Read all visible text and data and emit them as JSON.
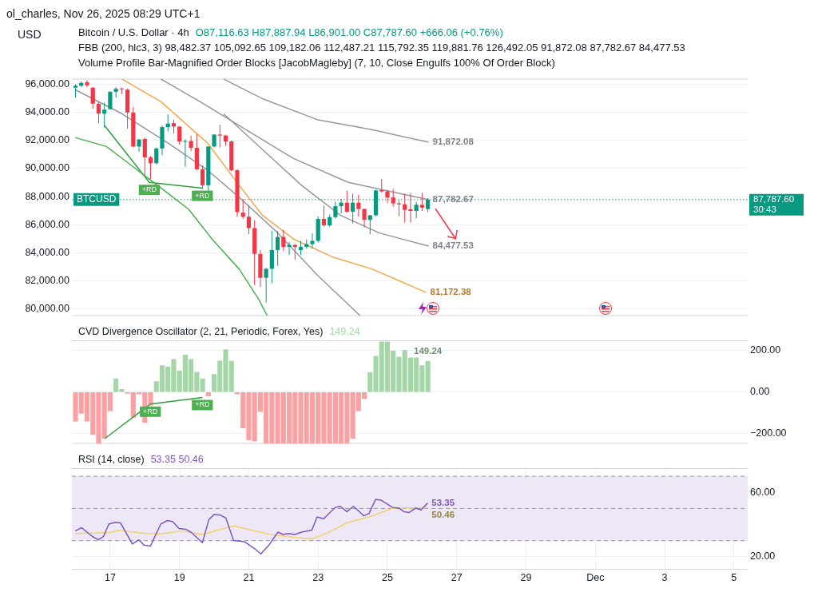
{
  "chart_data": [
    {
      "type": "candlestick",
      "title": "Bitcoin / U.S. Dollar · 4h",
      "subtitle": "O87,116.63 H87,887.94 L86,901.00 C87,787.60 +666.06 (+0.76%)",
      "ylabel": "USD",
      "x": [
        "2025-11-16T00:00",
        "2025-11-16T04:00",
        "2025-11-16T08:00",
        "2025-11-16T12:00",
        "2025-11-16T16:00",
        "2025-11-16T20:00",
        "2025-11-17T00:00",
        "2025-11-17T04:00",
        "2025-11-17T08:00",
        "2025-11-17T12:00",
        "2025-11-17T16:00",
        "2025-11-17T20:00",
        "2025-11-18T00:00",
        "2025-11-18T04:00",
        "2025-11-18T08:00",
        "2025-11-18T12:00",
        "2025-11-18T16:00",
        "2025-11-18T20:00",
        "2025-11-19T00:00",
        "2025-11-19T04:00",
        "2025-11-19T08:00",
        "2025-11-19T12:00",
        "2025-11-19T16:00",
        "2025-11-19T20:00",
        "2025-11-20T00:00",
        "2025-11-20T04:00",
        "2025-11-20T08:00",
        "2025-11-20T12:00",
        "2025-11-20T16:00",
        "2025-11-20T20:00",
        "2025-11-21T00:00",
        "2025-11-21T04:00",
        "2025-11-21T08:00",
        "2025-11-21T12:00",
        "2025-11-21T16:00",
        "2025-11-21T20:00",
        "2025-11-22T00:00",
        "2025-11-22T04:00",
        "2025-11-22T08:00",
        "2025-11-22T12:00",
        "2025-11-22T16:00",
        "2025-11-22T20:00",
        "2025-11-23T00:00",
        "2025-11-23T04:00",
        "2025-11-23T08:00",
        "2025-11-23T12:00",
        "2025-11-23T16:00",
        "2025-11-23T20:00",
        "2025-11-24T00:00",
        "2025-11-24T04:00",
        "2025-11-24T08:00",
        "2025-11-24T12:00",
        "2025-11-24T16:00",
        "2025-11-24T20:00",
        "2025-11-25T00:00",
        "2025-11-25T04:00",
        "2025-11-25T08:00",
        "2025-11-25T12:00",
        "2025-11-25T16:00",
        "2025-11-25T20:00",
        "2025-11-26T00:00",
        "2025-11-26T04:00"
      ],
      "ohlc": [
        [
          95760,
          96000,
          95050,
          95900
        ],
        [
          95900,
          96200,
          95800,
          96100
        ],
        [
          96150,
          96300,
          95800,
          95930
        ],
        [
          95760,
          95800,
          94270,
          94620
        ],
        [
          94620,
          94770,
          93200,
          93910
        ],
        [
          93910,
          94700,
          92920,
          94200
        ],
        [
          94230,
          95500,
          94200,
          95470
        ],
        [
          95470,
          95800,
          95050,
          95680
        ],
        [
          95700,
          95780,
          95300,
          95650
        ],
        [
          95620,
          95700,
          92840,
          93990
        ],
        [
          93990,
          94400,
          91500,
          91570
        ],
        [
          91570,
          92100,
          91200,
          92070
        ],
        [
          92100,
          92200,
          89530,
          90800
        ],
        [
          90800,
          90900,
          89250,
          90380
        ],
        [
          90380,
          91500,
          90300,
          91430
        ],
        [
          91430,
          93060,
          90950,
          92950
        ],
        [
          92950,
          93850,
          92650,
          93200
        ],
        [
          93230,
          93490,
          92500,
          92990
        ],
        [
          92990,
          93000,
          91710,
          91930
        ],
        [
          91900,
          92070,
          90120,
          91960
        ],
        [
          91960,
          92350,
          91230,
          91480
        ],
        [
          91480,
          92450,
          89880,
          89950
        ],
        [
          89950,
          90230,
          88530,
          88810
        ],
        [
          88810,
          91570,
          88380,
          91570
        ],
        [
          91570,
          92450,
          91500,
          92420
        ],
        [
          92420,
          93130,
          91500,
          92350
        ],
        [
          92350,
          92400,
          91640,
          91930
        ],
        [
          91930,
          92000,
          89800,
          89880
        ],
        [
          89880,
          89950,
          86550,
          86900
        ],
        [
          86860,
          87830,
          86420,
          86570
        ],
        [
          86570,
          87400,
          85330,
          85760
        ],
        [
          85760,
          86330,
          81700,
          83920
        ],
        [
          83920,
          84200,
          81560,
          82220
        ],
        [
          82220,
          82930,
          80450,
          82860
        ],
        [
          82860,
          85560,
          81840,
          84200
        ],
        [
          84200,
          85560,
          83070,
          85130
        ],
        [
          85130,
          85630,
          84130,
          84420
        ],
        [
          84420,
          84770,
          83850,
          84560
        ],
        [
          84560,
          84600,
          83500,
          84420
        ],
        [
          84200,
          84850,
          83850,
          84420
        ],
        [
          84420,
          84950,
          84300,
          84620
        ],
        [
          84620,
          85380,
          84300,
          84850
        ],
        [
          84850,
          86580,
          84730,
          86410
        ],
        [
          86410,
          87360,
          85880,
          85950
        ],
        [
          85950,
          86720,
          85880,
          86540
        ],
        [
          86540,
          87640,
          86440,
          87320
        ],
        [
          87320,
          87830,
          86800,
          87570
        ],
        [
          87570,
          88420,
          86860,
          86930
        ],
        [
          86930,
          88210,
          86080,
          87570
        ],
        [
          87570,
          88140,
          86580,
          87120
        ],
        [
          87120,
          87150,
          85830,
          86350
        ],
        [
          86350,
          86700,
          85330,
          86670
        ],
        [
          86670,
          88490,
          86600,
          88440
        ],
        [
          88460,
          89280,
          88290,
          88370
        ],
        [
          88370,
          88490,
          87520,
          87940
        ],
        [
          87940,
          88560,
          87300,
          87520
        ],
        [
          87520,
          87730,
          86600,
          87450
        ],
        [
          87450,
          88200,
          86160,
          87060
        ],
        [
          87100,
          88260,
          86160,
          86980
        ],
        [
          86980,
          87620,
          86440,
          87420
        ],
        [
          87420,
          88280,
          86980,
          87220
        ],
        [
          87116.63,
          87887.94,
          86901,
          87787.6
        ]
      ],
      "series": [
        {
          "type": "line",
          "x": [
            "2025-11-15T23:45",
            "2025-11-16T21:22",
            "2025-11-17T11:02",
            "2025-11-18T00:29",
            "2025-11-18T14:10",
            "2025-11-19T06:14",
            "2025-11-19T22:34",
            "2025-11-20T17:17",
            "2025-11-21T06:43",
            "2025-11-21T12:43"
          ],
          "values": [
            92210,
            91570,
            90510,
            89450,
            88380,
            87110,
            84980,
            82850,
            80720,
            79530
          ],
          "color": "#4caf50"
        },
        {
          "type": "line",
          "x": [
            "2025-11-17T08:10",
            "2025-11-18T11:02",
            "2025-11-19T19:41",
            "2025-11-20T17:17",
            "2025-11-21T09:22",
            "2025-11-22T06:58",
            "2025-11-23T10:05",
            "2025-11-24T13:12",
            "2025-11-26T02:53"
          ],
          "values": [
            96380,
            94770,
            91790,
            88810,
            86680,
            84980,
            83700,
            82850,
            81172.38
          ],
          "color": "#f5a54a",
          "value_labels": [
            null,
            null,
            null,
            null,
            null,
            null,
            null,
            null,
            "81,172.38"
          ]
        },
        {
          "type": "line",
          "x": [
            "2025-11-20T06:29",
            "2025-11-21T09:22",
            "2025-11-22T23:17",
            "2025-11-24T13:12",
            "2025-11-26T04:34"
          ],
          "values": [
            96380,
            94980,
            93490,
            92770,
            91872.08
          ],
          "color": "#9598a1",
          "value_labels": [
            null,
            null,
            null,
            null,
            "91,872.08"
          ]
        },
        {
          "type": "line",
          "x": [
            "2025-11-18T11:02",
            "2025-11-19T14:10",
            "2025-11-20T17:17",
            "2025-11-22T06:58",
            "2025-11-23T20:53",
            "2025-11-26T04:34"
          ],
          "values": [
            96380,
            94770,
            93060,
            90720,
            89020,
            87782.67
          ],
          "color": "#9598a1",
          "value_labels": [
            null,
            null,
            null,
            null,
            null,
            "87,782.67"
          ]
        },
        {
          "type": "line",
          "x": [
            "2025-11-20T06:29",
            "2025-11-21T09:22",
            "2025-11-22T12:29",
            "2025-11-23T15:22",
            "2025-11-24T18:29",
            "2025-11-26T04:34"
          ],
          "values": [
            93910,
            91360,
            88810,
            86680,
            85410,
            84477.53
          ],
          "color": "#9598a1",
          "value_labels": [
            null,
            null,
            null,
            null,
            null,
            "84,477.53"
          ]
        },
        {
          "type": "line",
          "x": [
            "2025-11-15T23:45",
            "2025-11-17T08:10",
            "2025-11-18T16:34",
            "2025-11-19T19:41",
            "2025-11-20T17:17",
            "2025-11-21T20:10",
            "2025-11-22T23:17",
            "2025-11-24T05:02"
          ],
          "values": [
            95620,
            93910,
            91790,
            89870,
            87960,
            85410,
            82430,
            79530
          ],
          "color": "#9598a1"
        },
        {
          "type": "line",
          "x": [
            "2025-11-16T20:10",
            "2025-11-18T03:07",
            "2025-11-19T15:50"
          ],
          "values": [
            93060,
            89020,
            88600
          ],
          "color": "#2e9e3f"
        }
      ],
      "xlim": [
        "2025-11-15T21:30",
        "2025-12-05T09:30"
      ],
      "xticks": [
        "2025-11-17",
        "2025-11-19",
        "2025-11-21",
        "2025-11-23",
        "2025-11-25",
        "2025-11-27",
        "2025-11-29",
        "2025-12-01",
        "2025-12-03",
        "2025-12-05"
      ],
      "ylim": [
        79500,
        96400
      ],
      "yticks": [
        {
          "value": 80000,
          "label": "80,000.00"
        },
        {
          "value": 82000,
          "label": "82,000.00"
        },
        {
          "value": 84000,
          "label": "84,000.00"
        },
        {
          "value": 86000,
          "label": "86,000.00"
        },
        {
          "value": 88000,
          "label": "88,000.00"
        },
        {
          "value": 90000,
          "label": "90,000.00"
        },
        {
          "value": 92000,
          "label": "92,000.00"
        },
        {
          "value": 94000,
          "label": "94,000.00"
        },
        {
          "value": 96000,
          "label": "96,000.00"
        }
      ],
      "grid": true,
      "tick_labels": "y",
      "ref_lines": [
        {
          "axis": "y",
          "value": 87787.6,
          "label": "BTCUSD",
          "color": "#089981",
          "line_style": "dotted"
        }
      ],
      "annotations": [
        "ol_charles, Nov 26, 2025 08:29 UTC+1",
        "FBB (200, hlc3, 3) 98,482.37 105,092.65 109,182.06 112,487.21 115,792.35 119,881.76 126,492.05 91,872.08 87,782.67 84,477.53",
        "Volume Profile Bar-Magnified Order Blocks [JacobMagleby] (7, 10, Close Engulfs 100% Of Order Block)",
        "87,787.60",
        "30:43",
        {
          "text": "+RD",
          "x": "2025-11-18T03:07",
          "y": 89020
        },
        {
          "text": "+RD",
          "x": "2025-11-19T15:50",
          "y": 88600
        }
      ]
    },
    {
      "type": "bar",
      "title": "CVD Divergence Oscillator (2, 21, Periodic, Forex, Yes)",
      "subtitle": "149.24",
      "series": [
        {
          "type": "bar",
          "x": [
            "2025-11-16T00:00",
            "2025-11-16T04:00",
            "2025-11-16T08:00",
            "2025-11-16T12:00",
            "2025-11-16T16:00",
            "2025-11-16T20:00",
            "2025-11-17T00:00",
            "2025-11-17T04:00",
            "2025-11-17T08:00",
            "2025-11-17T12:00",
            "2025-11-17T16:00",
            "2025-11-17T20:00",
            "2025-11-18T00:00",
            "2025-11-18T04:00",
            "2025-11-18T08:00",
            "2025-11-18T12:00",
            "2025-11-18T16:00",
            "2025-11-18T20:00",
            "2025-11-19T00:00",
            "2025-11-19T04:00",
            "2025-11-19T08:00",
            "2025-11-19T12:00",
            "2025-11-19T16:00",
            "2025-11-19T20:00",
            "2025-11-20T00:00",
            "2025-11-20T04:00",
            "2025-11-20T08:00",
            "2025-11-20T12:00",
            "2025-11-20T16:00",
            "2025-11-20T20:00",
            "2025-11-21T00:00",
            "2025-11-21T04:00",
            "2025-11-21T08:00",
            "2025-11-21T12:00",
            "2025-11-21T16:00",
            "2025-11-21T20:00",
            "2025-11-22T00:00",
            "2025-11-22T04:00",
            "2025-11-22T08:00",
            "2025-11-22T12:00",
            "2025-11-22T16:00",
            "2025-11-22T20:00",
            "2025-11-23T00:00",
            "2025-11-23T04:00",
            "2025-11-23T08:00",
            "2025-11-23T12:00",
            "2025-11-23T16:00",
            "2025-11-23T20:00",
            "2025-11-24T00:00",
            "2025-11-24T04:00",
            "2025-11-24T08:00",
            "2025-11-24T12:00",
            "2025-11-24T16:00",
            "2025-11-24T20:00",
            "2025-11-25T00:00",
            "2025-11-25T04:00",
            "2025-11-25T08:00",
            "2025-11-25T12:00",
            "2025-11-25T16:00",
            "2025-11-25T20:00",
            "2025-11-26T00:00",
            "2025-11-26T04:00"
          ],
          "values": [
            -141,
            -103,
            -141,
            -205,
            -248,
            -224,
            -90,
            64,
            13,
            -6,
            -122,
            -9,
            -147,
            -64,
            51,
            128,
            122,
            158,
            103,
            179,
            158,
            96,
            64,
            -19,
            86,
            150,
            205,
            150,
            -9,
            -173,
            -231,
            -237,
            -94,
            -248,
            -248,
            -248,
            -248,
            -248,
            -248,
            -248,
            -248,
            -248,
            -248,
            -248,
            -248,
            -248,
            -248,
            -248,
            -224,
            -90,
            -32,
            94,
            173,
            243,
            243,
            199,
            170,
            201,
            166,
            166,
            128,
            149.24
          ],
          "colors": [
            "#faa1a4",
            "#faa1a4",
            "#faa1a4",
            "#faa1a4",
            "#faa1a4",
            "#faa1a4",
            "#faa1a4",
            "#a5d6a7",
            "#a5d6a7",
            "#faa1a4",
            "#faa1a4",
            "#faa1a4",
            "#faa1a4",
            "#faa1a4",
            "#a5d6a7",
            "#a5d6a7",
            "#a5d6a7",
            "#a5d6a7",
            "#a5d6a7",
            "#a5d6a7",
            "#a5d6a7",
            "#a5d6a7",
            "#a5d6a7",
            "#faa1a4",
            "#a5d6a7",
            "#a5d6a7",
            "#a5d6a7",
            "#a5d6a7",
            "#faa1a4",
            "#faa1a4",
            "#faa1a4",
            "#faa1a4",
            "#faa1a4",
            "#faa1a4",
            "#faa1a4",
            "#faa1a4",
            "#faa1a4",
            "#faa1a4",
            "#faa1a4",
            "#faa1a4",
            "#faa1a4",
            "#faa1a4",
            "#faa1a4",
            "#faa1a4",
            "#faa1a4",
            "#faa1a4",
            "#faa1a4",
            "#faa1a4",
            "#faa1a4",
            "#faa1a4",
            "#faa1a4",
            "#a5d6a7",
            "#a5d6a7",
            "#a5d6a7",
            "#a5d6a7",
            "#a5d6a7",
            "#a5d6a7",
            "#a5d6a7",
            "#a5d6a7",
            "#a5d6a7",
            "#a5d6a7",
            "#a5d6a7"
          ],
          "value_labels": [
            null,
            null,
            null,
            null,
            null,
            null,
            null,
            null,
            null,
            null,
            null,
            null,
            null,
            null,
            null,
            null,
            null,
            null,
            null,
            null,
            null,
            null,
            null,
            null,
            null,
            null,
            null,
            null,
            null,
            null,
            null,
            null,
            null,
            null,
            null,
            null,
            null,
            null,
            null,
            null,
            null,
            null,
            null,
            null,
            null,
            null,
            null,
            null,
            null,
            null,
            null,
            null,
            null,
            null,
            null,
            null,
            null,
            null,
            null,
            null,
            null,
            "149.24"
          ]
        },
        {
          "type": "line",
          "x": [
            "2025-11-16T20:24",
            "2025-11-18T03:50",
            "2025-11-19T15:50"
          ],
          "values": [
            -224,
            -58,
            -26
          ],
          "color": "#2e9e3f"
        }
      ],
      "xlim": [
        "2025-11-15T21:30",
        "2025-12-05T09:30"
      ],
      "xticks": [
        "2025-11-17",
        "2025-11-19",
        "2025-11-21",
        "2025-11-23",
        "2025-11-25",
        "2025-11-27",
        "2025-11-29",
        "2025-12-01",
        "2025-12-03",
        "2025-12-05"
      ],
      "ylim": [
        -250,
        250
      ],
      "yticks": [
        {
          "value": 200,
          "label": "200.00"
        },
        {
          "value": 0,
          "label": "0.00"
        },
        {
          "value": -200,
          "label": "−200.00"
        }
      ],
      "grid": true,
      "tick_labels": "y",
      "annotations": [
        {
          "text": "+RD",
          "x": "2025-11-18T03:50",
          "y": -58
        },
        {
          "text": "+RD",
          "x": "2025-11-19T15:50",
          "y": -26
        }
      ]
    },
    {
      "type": "line",
      "title": "RSI (14, close)",
      "subtitle": "53.35 50.46",
      "series": [
        {
          "x": [
            "2025-11-15T23:45",
            "2025-11-16T04:05",
            "2025-11-16T11:31",
            "2025-11-16T15:50",
            "2025-11-16T19:26",
            "2025-11-16T23:02",
            "2025-11-17T03:36",
            "2025-11-17T07:12",
            "2025-11-17T15:22",
            "2025-11-17T19:55",
            "2025-11-17T23:31",
            "2025-11-18T03:50",
            "2025-11-18T11:02",
            "2025-11-18T15:36",
            "2025-11-18T19:12",
            "2025-11-18T23:46",
            "2025-11-19T04:19",
            "2025-11-19T07:55",
            "2025-11-19T12:29",
            "2025-11-19T15:50",
            "2025-11-19T20:24",
            "2025-11-20T00:00",
            "2025-11-20T04:34",
            "2025-11-20T08:10",
            "2025-11-20T10:48",
            "2025-11-20T13:26",
            "2025-11-20T20:53",
            "2025-11-21T04:05",
            "2025-11-21T08:24",
            "2025-11-21T13:55",
            "2025-11-21T20:10",
            "2025-11-21T23:46",
            "2025-11-22T03:22",
            "2025-11-22T07:55",
            "2025-11-22T12:29",
            "2025-11-22T19:41",
            "2025-11-22T23:17",
            "2025-11-23T03:50",
            "2025-11-23T11:46",
            "2025-11-23T15:22",
            "2025-11-23T19:55",
            "2025-11-24T00:29",
            "2025-11-24T07:41",
            "2025-11-24T11:17",
            "2025-11-24T15:50",
            "2025-11-24T19:26",
            "2025-11-25T03:36",
            "2025-11-25T07:55",
            "2025-11-25T11:31",
            "2025-11-25T15:07",
            "2025-11-25T19:41",
            "2025-11-25T23:17",
            "2025-11-26T03:50"
          ],
          "values": [
            36,
            38.1,
            32.7,
            30.5,
            32.7,
            40.3,
            41.4,
            41,
            27.9,
            30.5,
            27.2,
            26.6,
            40.3,
            42.5,
            41.9,
            37.5,
            37.1,
            35.3,
            31.6,
            28.7,
            43.2,
            46.2,
            45.8,
            44,
            37.1,
            30.1,
            29.4,
            25,
            21.8,
            27.2,
            35.3,
            33.8,
            34.4,
            33.8,
            35.3,
            36.6,
            44.7,
            43.6,
            50.6,
            51.3,
            48,
            51.3,
            45.4,
            46.9,
            55.6,
            55.2,
            50.6,
            50.2,
            48,
            47.5,
            50.2,
            49.1,
            53.35
          ],
          "color": "#7e57c2",
          "value_labels": [
            null,
            null,
            null,
            null,
            null,
            null,
            null,
            null,
            null,
            null,
            null,
            null,
            null,
            null,
            null,
            null,
            null,
            null,
            null,
            null,
            null,
            null,
            null,
            null,
            null,
            null,
            null,
            null,
            null,
            null,
            null,
            null,
            null,
            null,
            null,
            null,
            null,
            null,
            null,
            null,
            null,
            null,
            null,
            null,
            null,
            null,
            null,
            null,
            null,
            null,
            null,
            null,
            "53.35"
          ]
        },
        {
          "x": [
            "2025-11-15T23:45",
            "2025-11-16T23:02",
            "2025-11-17T06:14",
            "2025-11-18T00:14",
            "2025-11-18T11:02",
            "2025-11-19T01:26",
            "2025-11-19T15:50",
            "2025-11-20T13:26",
            "2025-11-21T14:38",
            "2025-11-22T12:29",
            "2025-11-22T19:41",
            "2025-11-23T06:29",
            "2025-11-23T20:53",
            "2025-11-24T11:17",
            "2025-11-25T03:36",
            "2025-11-26T03:50"
          ],
          "values": [
            34.4,
            34.9,
            36.4,
            34.4,
            34.2,
            36,
            33.8,
            39.2,
            33.8,
            31.6,
            31.1,
            34.9,
            41.4,
            44.7,
            50.2,
            50.46
          ],
          "color": "#f2d36b",
          "value_labels": [
            null,
            null,
            null,
            null,
            null,
            null,
            null,
            null,
            null,
            null,
            null,
            null,
            null,
            null,
            null,
            "50.46"
          ]
        }
      ],
      "xlim": [
        "2025-11-15T21:30",
        "2025-12-05T09:30"
      ],
      "xticks": [
        {
          "value": "2025-11-17",
          "label": "17"
        },
        {
          "value": "2025-11-19",
          "label": "19"
        },
        {
          "value": "2025-11-21",
          "label": "21"
        },
        {
          "value": "2025-11-23",
          "label": "23"
        },
        {
          "value": "2025-11-25",
          "label": "25"
        },
        {
          "value": "2025-11-27",
          "label": "27"
        },
        {
          "value": "2025-11-29",
          "label": "29"
        },
        {
          "value": "2025-12-01",
          "label": "Dec"
        },
        {
          "value": "2025-12-03",
          "label": "3"
        },
        {
          "value": "2025-12-05",
          "label": "5"
        }
      ],
      "ylim": [
        12,
        75
      ],
      "yticks": [
        {
          "value": 20,
          "label": "20.00"
        },
        {
          "value": 60,
          "label": "60.00"
        }
      ],
      "grid": true,
      "bands": [
        {
          "axis": "y",
          "from": 30,
          "to": 70,
          "color": "#ede7f6"
        }
      ],
      "ref_lines": [
        {
          "axis": "y",
          "value": 70,
          "color": "#9598a1",
          "line_style": "dashed"
        },
        {
          "axis": "y",
          "value": 50,
          "color": "#9598a1",
          "line_style": "dashed"
        },
        {
          "axis": "y",
          "value": 30,
          "color": "#9598a1",
          "line_style": "dashed"
        }
      ]
    }
  ]
}
